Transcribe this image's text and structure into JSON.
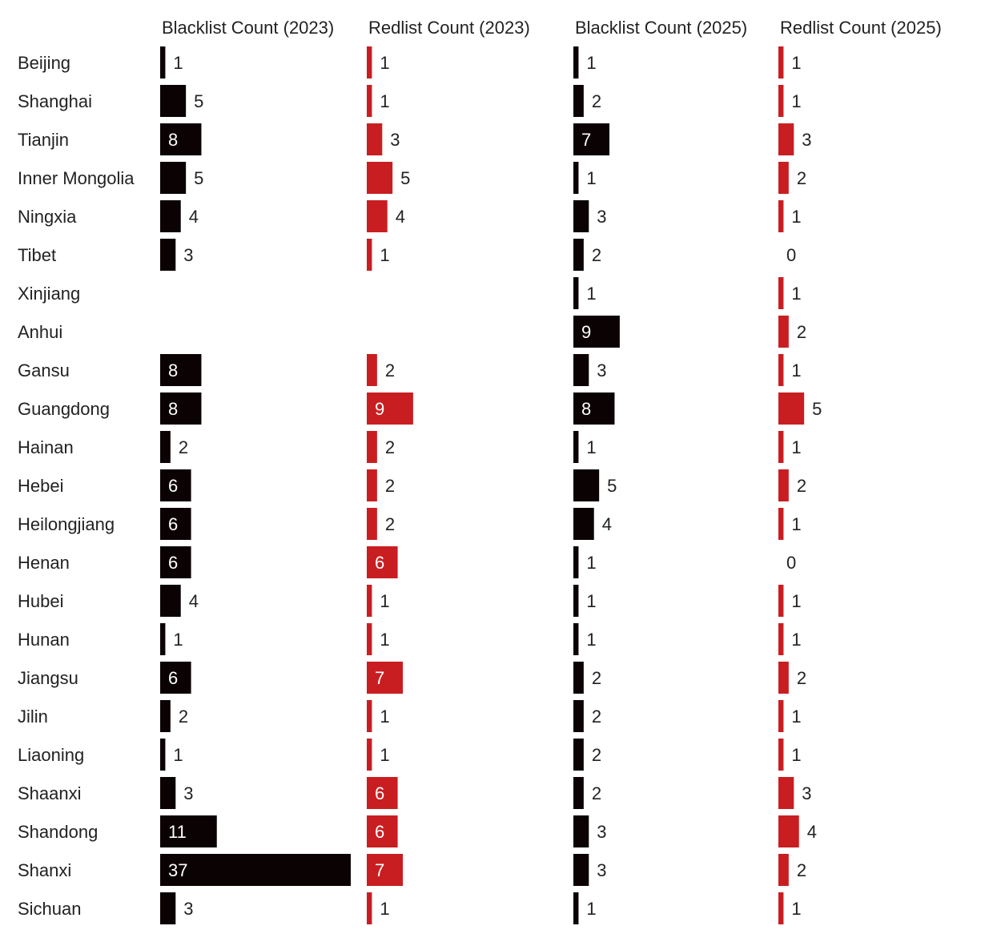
{
  "chart_data": {
    "type": "table",
    "categories": [
      "Beijing",
      "Shanghai",
      "Tianjin",
      "Inner Mongolia",
      "Ningxia",
      "Tibet",
      "Xinjiang",
      "Anhui",
      "Gansu",
      "Guangdong",
      "Hainan",
      "Hebei",
      "Heilongjiang",
      "Henan",
      "Hubei",
      "Hunan",
      "Jiangsu",
      "Jilin",
      "Liaoning",
      "Shaanxi",
      "Shandong",
      "Shanxi",
      "Sichuan"
    ],
    "series": [
      {
        "name": "Blacklist Count (2023)",
        "color": "#0b0204",
        "values": [
          1,
          5,
          8,
          5,
          4,
          3,
          null,
          null,
          8,
          8,
          2,
          6,
          6,
          6,
          4,
          1,
          6,
          2,
          1,
          3,
          11,
          37,
          3
        ]
      },
      {
        "name": "Redlist Count (2023)",
        "color": "#c91e21",
        "values": [
          1,
          1,
          3,
          5,
          4,
          1,
          null,
          null,
          2,
          9,
          2,
          2,
          2,
          6,
          1,
          1,
          7,
          1,
          1,
          6,
          6,
          7,
          1
        ]
      },
      {
        "name": "Blacklist Count (2025)",
        "color": "#0b0204",
        "values": [
          1,
          2,
          7,
          1,
          3,
          2,
          1,
          9,
          3,
          8,
          1,
          5,
          4,
          1,
          1,
          1,
          2,
          2,
          2,
          2,
          3,
          3,
          1
        ]
      },
      {
        "name": "Redlist Count (2025)",
        "color": "#c91e21",
        "values": [
          1,
          1,
          3,
          2,
          1,
          0,
          1,
          2,
          1,
          5,
          1,
          2,
          1,
          0,
          1,
          1,
          2,
          1,
          1,
          3,
          4,
          2,
          1
        ]
      }
    ],
    "scale_max": 37,
    "text_color": "#222222",
    "inside_label_color": "#ffffff"
  }
}
